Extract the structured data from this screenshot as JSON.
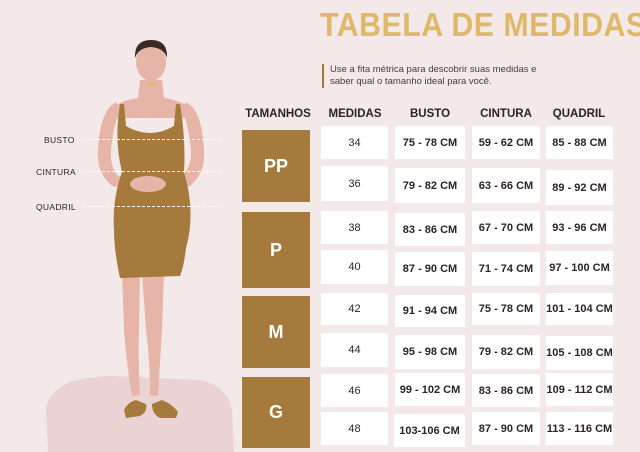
{
  "title": "TABELA DE MEDIDAS",
  "subtitle": "Use a fita métrica para descobrir suas medidas e saber qual o tamanho ideal para você.",
  "headers": [
    "TAMANHOS",
    "MEDIDAS",
    "BUSTO",
    "CINTURA",
    "QUADRIL"
  ],
  "body_labels": {
    "busto": "BUSTO",
    "cintura": "CINTURA",
    "quadril": "QUADRIL"
  },
  "sizes": [
    {
      "size": "PP",
      "rows": [
        {
          "medida": "34",
          "busto": "75 - 78 CM",
          "cintura": "59 - 62 CM",
          "quadril": "85 - 88 CM"
        },
        {
          "medida": "36",
          "busto": "79 - 82 CM",
          "cintura": "63 - 66 CM",
          "quadril": "89 - 92 CM"
        }
      ]
    },
    {
      "size": "P",
      "rows": [
        {
          "medida": "38",
          "busto": "83 - 86 CM",
          "cintura": "67 - 70 CM",
          "quadril": "93 - 96 CM"
        },
        {
          "medida": "40",
          "busto": "87 - 90 CM",
          "cintura": "71 - 74 CM",
          "quadril": "97 - 100 CM"
        }
      ]
    },
    {
      "size": "M",
      "rows": [
        {
          "medida": "42",
          "busto": "91 - 94 CM",
          "cintura": "75 - 78 CM",
          "quadril": "101 - 104 CM"
        },
        {
          "medida": "44",
          "busto": "95 - 98 CM",
          "cintura": "79 - 82 CM",
          "quadril": "105 - 108 CM"
        }
      ]
    },
    {
      "size": "G",
      "rows": [
        {
          "medida": "46",
          "busto": "99 - 102 CM",
          "cintura": "83 - 86 CM",
          "quadril": "109 - 112 CM"
        },
        {
          "medida": "48",
          "busto": "103-106 CM",
          "cintura": "87 - 90 CM",
          "quadril": "113 - 116 CM"
        }
      ]
    }
  ],
  "colors": {
    "background": "#f3e9e9",
    "title": "#e0b86a",
    "size_block": "#a57a3c",
    "dress": "#a57a3c",
    "skin": "#e6b5a8",
    "text": "#2d2323"
  }
}
